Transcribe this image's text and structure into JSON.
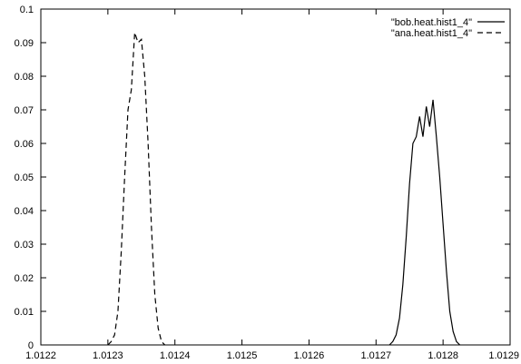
{
  "chart_data": {
    "type": "line",
    "title": "",
    "xlabel": "",
    "ylabel": "",
    "xlim": [
      1.0122,
      1.0129
    ],
    "ylim": [
      0,
      0.1
    ],
    "grid": false,
    "legend_position": "top-right",
    "x_ticks": [
      "1.0122",
      "1.0123",
      "1.0124",
      "1.0125",
      "1.0126",
      "1.0127",
      "1.0128",
      "1.0129"
    ],
    "y_ticks": [
      "0",
      "0.01",
      "0.02",
      "0.03",
      "0.04",
      "0.05",
      "0.06",
      "0.07",
      "0.08",
      "0.09",
      "0.1"
    ],
    "series": [
      {
        "name": "\"bob.heat.hist1_4\"",
        "style": "solid",
        "color": "#000000",
        "points": [
          [
            1.01272,
            0.0
          ],
          [
            1.012725,
            0.001
          ],
          [
            1.01273,
            0.003
          ],
          [
            1.012735,
            0.008
          ],
          [
            1.01274,
            0.018
          ],
          [
            1.012745,
            0.032
          ],
          [
            1.01275,
            0.048
          ],
          [
            1.012755,
            0.06
          ],
          [
            1.01276,
            0.062
          ],
          [
            1.012765,
            0.068
          ],
          [
            1.01277,
            0.062
          ],
          [
            1.012775,
            0.071
          ],
          [
            1.01278,
            0.065
          ],
          [
            1.012785,
            0.073
          ],
          [
            1.01279,
            0.062
          ],
          [
            1.012795,
            0.05
          ],
          [
            1.0128,
            0.036
          ],
          [
            1.012805,
            0.022
          ],
          [
            1.01281,
            0.01
          ],
          [
            1.012815,
            0.004
          ],
          [
            1.01282,
            0.001
          ],
          [
            1.012825,
            0.0
          ]
        ]
      },
      {
        "name": "\"ana.heat.hist1_4\"",
        "style": "dashed",
        "color": "#000000",
        "points": [
          [
            1.0123,
            0.0
          ],
          [
            1.012305,
            0.001
          ],
          [
            1.01231,
            0.003
          ],
          [
            1.012315,
            0.01
          ],
          [
            1.01232,
            0.028
          ],
          [
            1.012325,
            0.05
          ],
          [
            1.01233,
            0.07
          ],
          [
            1.012335,
            0.076
          ],
          [
            1.01234,
            0.093
          ],
          [
            1.012345,
            0.09
          ],
          [
            1.01235,
            0.091
          ],
          [
            1.012355,
            0.08
          ],
          [
            1.01236,
            0.06
          ],
          [
            1.012365,
            0.035
          ],
          [
            1.01237,
            0.015
          ],
          [
            1.012375,
            0.005
          ],
          [
            1.01238,
            0.001
          ],
          [
            1.012385,
            0.0
          ]
        ]
      }
    ]
  }
}
